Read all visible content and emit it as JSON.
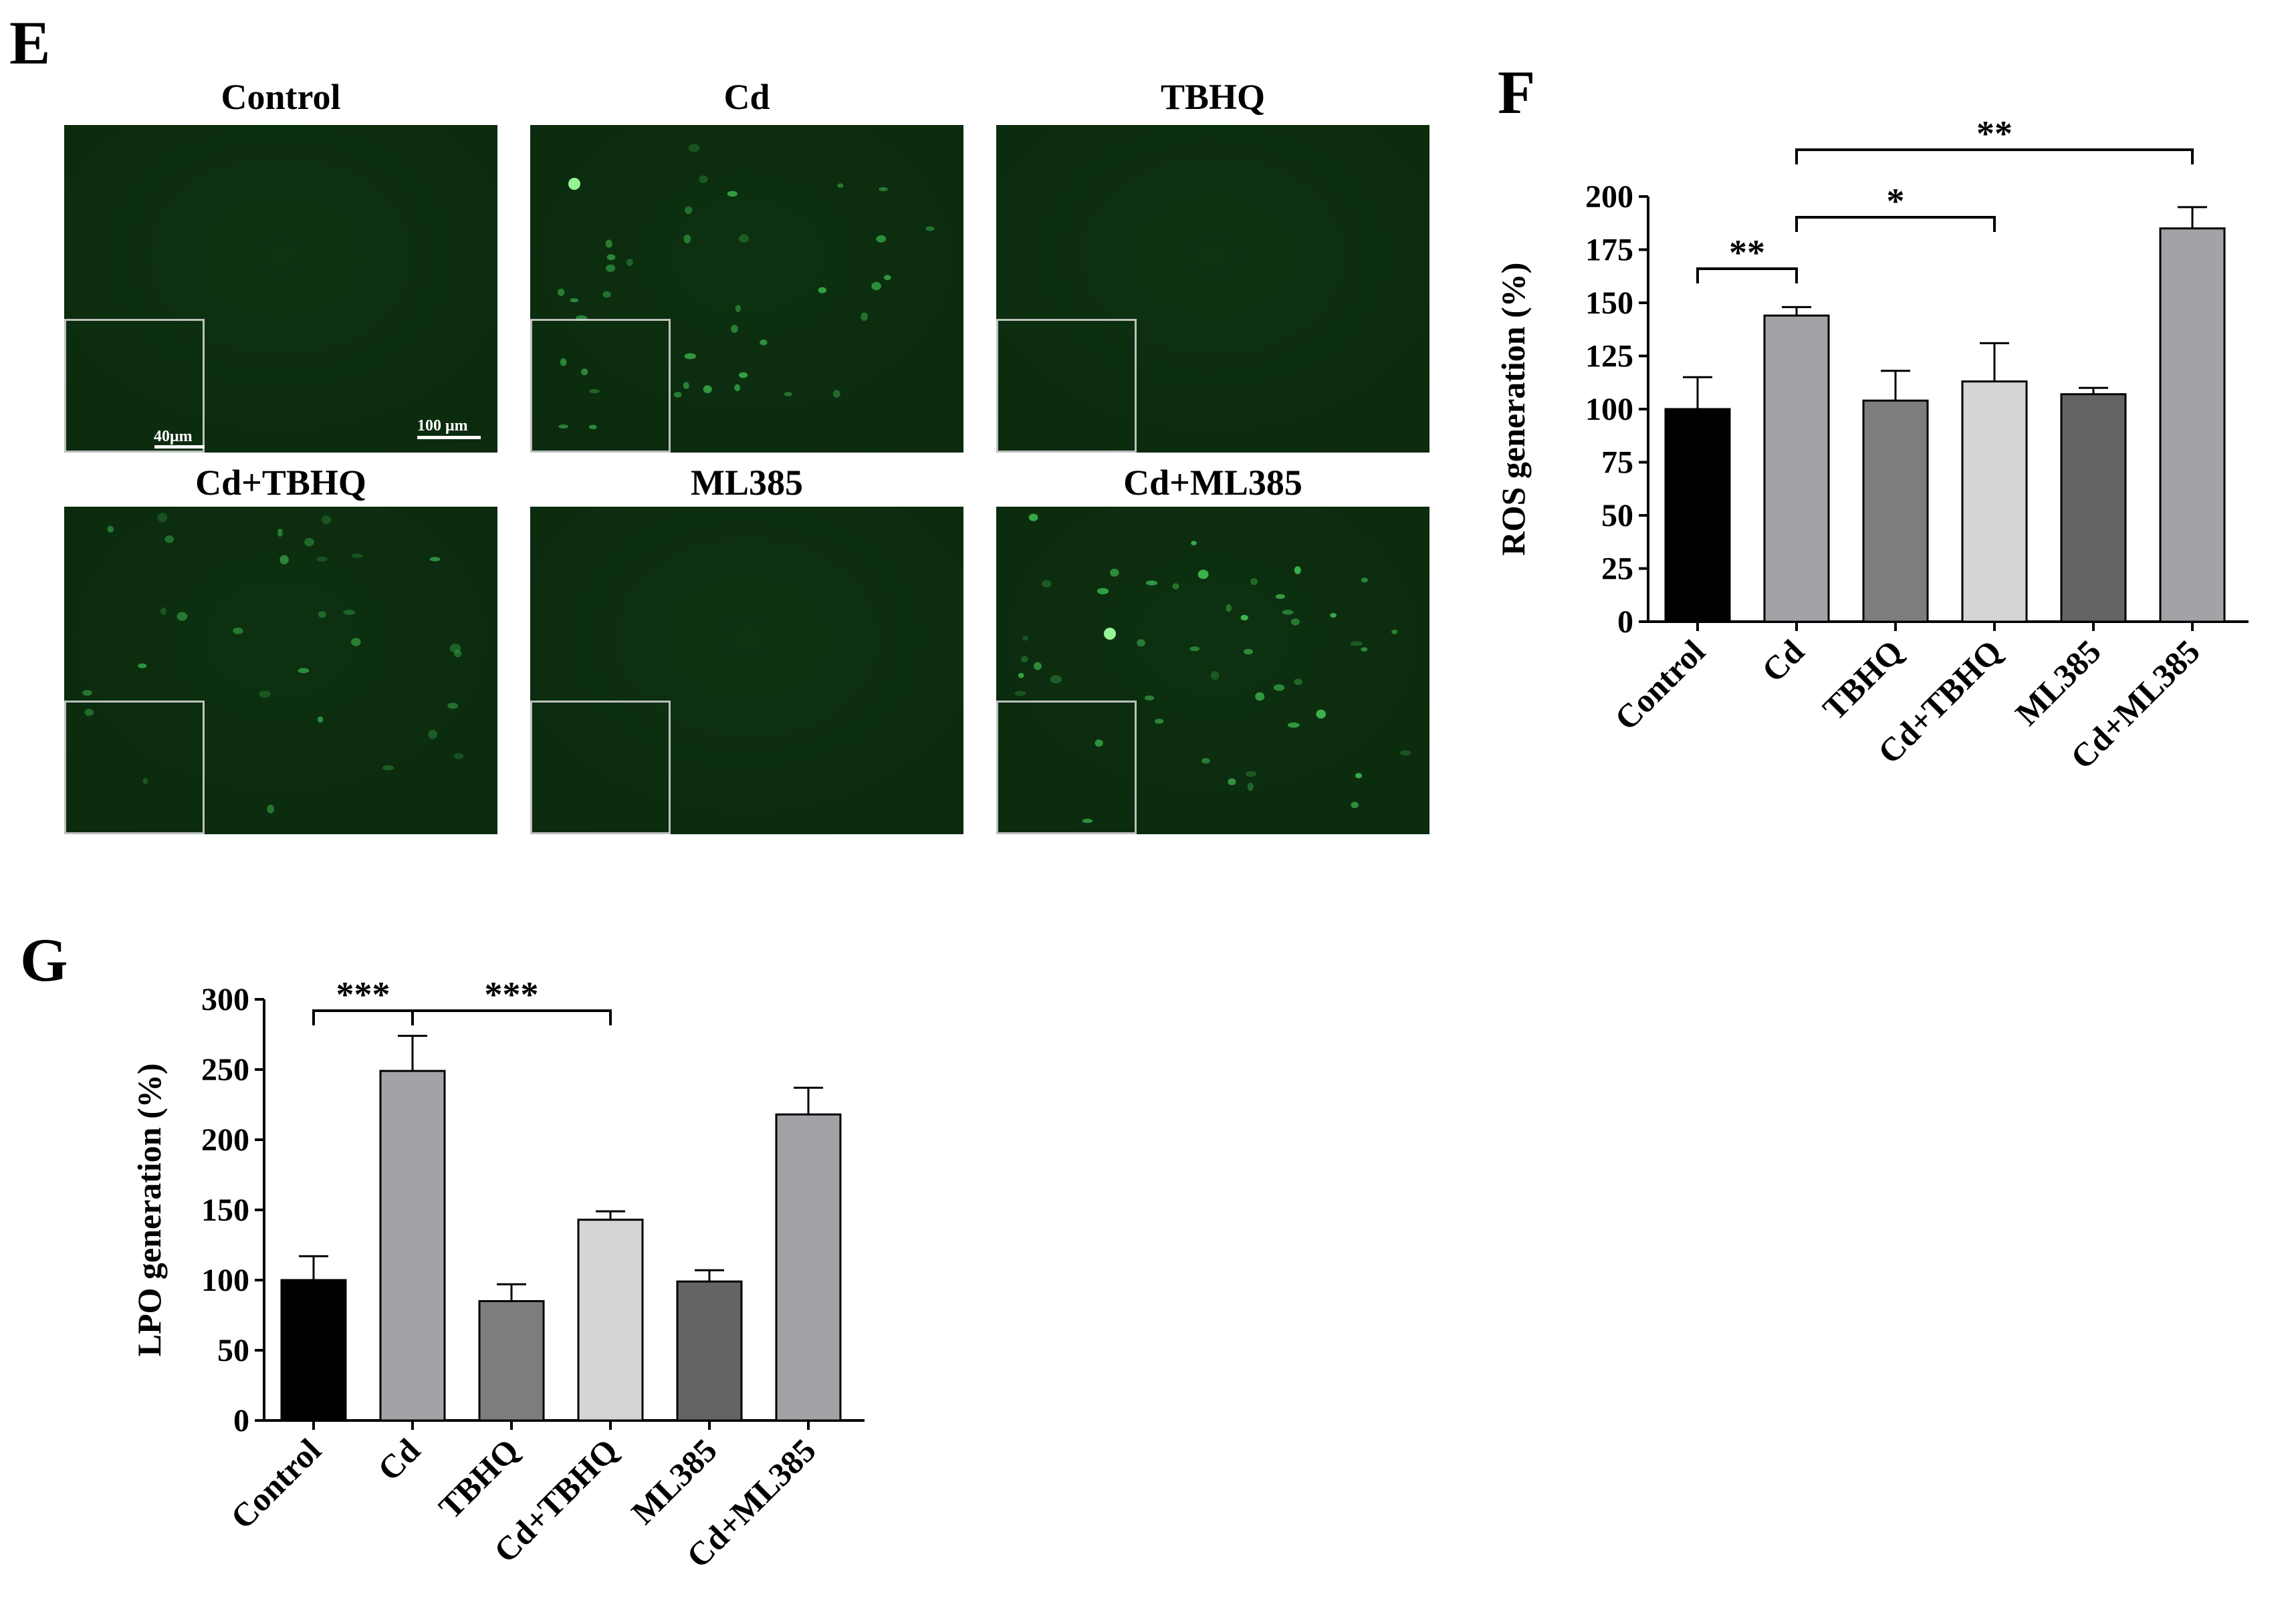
{
  "panel_letters": {
    "e": "E",
    "f": "F",
    "g": "G"
  },
  "micrographs": [
    {
      "title": "Control",
      "cells": 0,
      "brightness": 0.0,
      "bright_spot": false
    },
    {
      "title": "Cd",
      "cells": 38,
      "brightness": 0.55,
      "bright_spot": true
    },
    {
      "title": "TBHQ",
      "cells": 0,
      "brightness": 0.0,
      "bright_spot": false
    },
    {
      "title": "Cd+TBHQ",
      "cells": 30,
      "brightness": 0.45,
      "bright_spot": false
    },
    {
      "title": "ML385",
      "cells": 0,
      "brightness": 0.0,
      "bright_spot": false
    },
    {
      "title": "Cd+ML385",
      "cells": 46,
      "brightness": 0.7,
      "bright_spot": true
    }
  ],
  "scale_bars": {
    "inset": "40μm",
    "main": "100 μm"
  },
  "colors": {
    "micrograph_background": "#0b2a0e",
    "cell_fluorescence": "#3fbf52",
    "bar_fills": [
      "#000000",
      "#a3a3a7",
      "#7d7d7d",
      "#d5d5d5",
      "#646464",
      "#a3a3a7"
    ]
  },
  "chart_data": [
    {
      "type": "bar",
      "panel": "F",
      "categories": [
        "Control",
        "Cd",
        "TBHQ",
        "Cd+TBHQ",
        "ML385",
        "Cd+ML385"
      ],
      "values": [
        100,
        144,
        104,
        113,
        107,
        185
      ],
      "errors": [
        15,
        4,
        14,
        18,
        3,
        10
      ],
      "title": "",
      "xlabel": "",
      "ylabel": "ROS generation (%)",
      "ylim": [
        0,
        200
      ],
      "yticks": [
        "0",
        "25",
        "50",
        "75",
        "100",
        "125",
        "150",
        "175",
        "200"
      ],
      "significance": [
        {
          "from": 0,
          "to": 1,
          "label": "**"
        },
        {
          "from": 1,
          "to": 3,
          "label": "*"
        },
        {
          "from": 1,
          "to": 5,
          "label": "**"
        }
      ]
    },
    {
      "type": "bar",
      "panel": "G",
      "categories": [
        "Control",
        "Cd",
        "TBHQ",
        "Cd+TBHQ",
        "ML385",
        "Cd+ML385"
      ],
      "values": [
        100,
        249,
        85,
        143,
        99,
        218
      ],
      "errors": [
        17,
        25,
        12,
        6,
        8,
        19
      ],
      "title": "",
      "xlabel": "",
      "ylabel": "LPO generation (%)",
      "ylim": [
        0,
        300
      ],
      "yticks": [
        "0",
        "50",
        "100",
        "150",
        "200",
        "250",
        "300"
      ],
      "significance": [
        {
          "from": 0,
          "to": 1,
          "label": "***"
        },
        {
          "from": 1,
          "to": 3,
          "label": "***"
        }
      ]
    }
  ]
}
